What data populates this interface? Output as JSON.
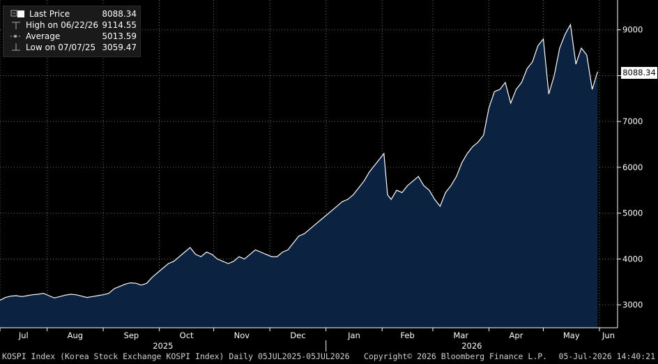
{
  "legend": {
    "last_price_label": "Last Price",
    "last_price_value": "8088.34",
    "high_label": "High on 06/22/26",
    "high_value": "9114.55",
    "average_label": "Average",
    "average_value": "5013.59",
    "low_label": "Low on 07/07/25",
    "low_value": "3059.47"
  },
  "last_price_tag": "8088.34",
  "footer": {
    "description": "KOSPI Index (Korea Stock Exchange KOSPI Index) Daily 05JUL2025-05JUL2026",
    "copyright": "Copyright© 2026 Bloomberg Finance L.P.",
    "timestamp": "05-Jul-2026 14:40:21"
  },
  "colors": {
    "background": "#000000",
    "area_fill": "#0b2240",
    "line": "#ffffff",
    "grid": "#6e6e6e"
  },
  "chart_data": {
    "type": "area",
    "title": "KOSPI Index (Korea Stock Exchange KOSPI Index) Daily 05JUL2025-05JUL2026",
    "ylim": [
      2500,
      9650
    ],
    "yticks": [
      "3000",
      "4000",
      "5000",
      "6000",
      "7000",
      "8000",
      "9000"
    ],
    "months": [
      "Jul",
      "Aug",
      "Sep",
      "Oct",
      "Nov",
      "Dec",
      "Jan",
      "Feb",
      "Mar",
      "Apr",
      "May",
      "Jun"
    ],
    "years": [
      "2025",
      "2026"
    ],
    "grid": true,
    "series": [
      {
        "values": [
          [
            0,
            3100
          ],
          [
            3,
            3160
          ],
          [
            6,
            3190
          ],
          [
            9,
            3200
          ],
          [
            12,
            3180
          ],
          [
            15,
            3200
          ],
          [
            18,
            3220
          ],
          [
            21,
            3230
          ],
          [
            24,
            3250
          ],
          [
            27,
            3200
          ],
          [
            30,
            3150
          ],
          [
            33,
            3180
          ],
          [
            36,
            3210
          ],
          [
            39,
            3230
          ],
          [
            42,
            3220
          ],
          [
            45,
            3190
          ],
          [
            48,
            3160
          ],
          [
            51,
            3180
          ],
          [
            54,
            3200
          ],
          [
            57,
            3220
          ],
          [
            60,
            3250
          ],
          [
            63,
            3350
          ],
          [
            66,
            3400
          ],
          [
            69,
            3450
          ],
          [
            72,
            3480
          ],
          [
            75,
            3470
          ],
          [
            78,
            3430
          ],
          [
            81,
            3470
          ],
          [
            84,
            3600
          ],
          [
            87,
            3700
          ],
          [
            90,
            3800
          ],
          [
            93,
            3900
          ],
          [
            96,
            3950
          ],
          [
            99,
            4050
          ],
          [
            102,
            4150
          ],
          [
            105,
            4250
          ],
          [
            108,
            4100
          ],
          [
            111,
            4050
          ],
          [
            114,
            4150
          ],
          [
            117,
            4100
          ],
          [
            120,
            4000
          ],
          [
            123,
            3950
          ],
          [
            126,
            3900
          ],
          [
            129,
            3950
          ],
          [
            132,
            4050
          ],
          [
            135,
            4000
          ],
          [
            138,
            4100
          ],
          [
            141,
            4200
          ],
          [
            144,
            4150
          ],
          [
            147,
            4100
          ],
          [
            150,
            4050
          ],
          [
            153,
            4050
          ],
          [
            156,
            4150
          ],
          [
            159,
            4200
          ],
          [
            162,
            4350
          ],
          [
            165,
            4500
          ],
          [
            168,
            4550
          ],
          [
            171,
            4650
          ],
          [
            174,
            4750
          ],
          [
            177,
            4850
          ],
          [
            180,
            4950
          ],
          [
            183,
            5050
          ],
          [
            186,
            5150
          ],
          [
            189,
            5250
          ],
          [
            192,
            5300
          ],
          [
            195,
            5400
          ],
          [
            198,
            5550
          ],
          [
            201,
            5700
          ],
          [
            204,
            5900
          ],
          [
            207,
            6050
          ],
          [
            210,
            6200
          ],
          [
            212,
            6300
          ],
          [
            214,
            5400
          ],
          [
            216,
            5300
          ],
          [
            219,
            5500
          ],
          [
            222,
            5450
          ],
          [
            225,
            5600
          ],
          [
            228,
            5700
          ],
          [
            231,
            5800
          ],
          [
            234,
            5600
          ],
          [
            237,
            5500
          ],
          [
            240,
            5300
          ],
          [
            243,
            5150
          ],
          [
            246,
            5450
          ],
          [
            249,
            5600
          ],
          [
            252,
            5800
          ],
          [
            255,
            6100
          ],
          [
            258,
            6300
          ],
          [
            261,
            6450
          ],
          [
            264,
            6550
          ],
          [
            267,
            6700
          ],
          [
            270,
            7300
          ],
          [
            273,
            7650
          ],
          [
            276,
            7700
          ],
          [
            279,
            7850
          ],
          [
            282,
            7400
          ],
          [
            285,
            7700
          ],
          [
            288,
            7850
          ],
          [
            291,
            8150
          ],
          [
            294,
            8300
          ],
          [
            297,
            8650
          ],
          [
            300,
            8800
          ],
          [
            303,
            7600
          ],
          [
            306,
            8000
          ],
          [
            309,
            8600
          ],
          [
            312,
            8900
          ],
          [
            315,
            9114.55
          ],
          [
            318,
            8250
          ],
          [
            321,
            8600
          ],
          [
            324,
            8450
          ],
          [
            327,
            7700
          ],
          [
            330,
            8088.34
          ]
        ]
      }
    ]
  }
}
